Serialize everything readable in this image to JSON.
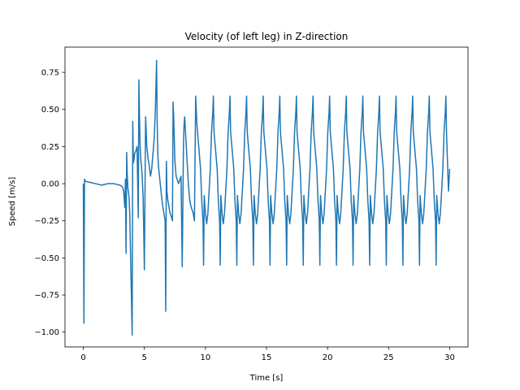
{
  "chart_data": {
    "type": "line",
    "title": "Velocity (of left leg) in Z-direction",
    "xlabel": "Time [s]",
    "ylabel": "Speed [m/s]",
    "xlim": [
      -1.5,
      31.5
    ],
    "ylim": [
      -1.1,
      0.92
    ],
    "xticks": [
      0,
      5,
      10,
      15,
      20,
      25,
      30
    ],
    "xtick_labels": [
      "0",
      "5",
      "10",
      "15",
      "20",
      "25",
      "30"
    ],
    "yticks": [
      0.75,
      0.5,
      0.25,
      0.0,
      -0.25,
      -0.5,
      -0.75,
      -1.0
    ],
    "ytick_labels": [
      "0.75",
      "0.50",
      "0.25",
      "0.00",
      "−0.25",
      "−0.50",
      "−0.75",
      "−1.00"
    ],
    "grid": false,
    "series": [
      {
        "color": "#1f77b4",
        "transient": {
          "x": [
            0.0,
            0.05,
            0.1,
            0.15,
            0.2,
            0.5,
            1.0,
            1.5,
            2.0,
            2.5,
            3.0,
            3.2,
            3.3,
            3.4,
            3.45,
            3.5,
            3.55,
            3.6,
            3.65,
            3.7,
            3.75,
            3.8,
            3.9,
            4.0,
            4.05,
            4.1,
            4.15,
            4.2,
            4.3,
            4.4,
            4.5,
            4.55,
            4.6,
            4.65,
            4.7,
            4.8,
            4.9,
            5.0,
            5.1,
            5.2,
            5.3,
            5.4,
            5.5,
            5.6,
            5.7,
            5.8,
            5.9,
            6.0,
            6.05,
            6.1,
            6.15,
            6.2,
            6.3,
            6.4,
            6.5,
            6.6,
            6.7,
            6.75,
            6.8,
            6.85,
            6.9,
            7.0,
            7.1,
            7.2,
            7.3,
            7.35,
            7.4,
            7.45,
            7.5,
            7.6,
            7.8,
            8.0,
            8.1,
            8.2,
            8.25,
            8.3,
            8.4,
            8.5,
            8.6,
            8.7,
            8.8,
            9.0,
            9.1,
            9.2,
            9.3,
            9.4,
            9.5
          ],
          "y": [
            0.0,
            -0.94,
            0.03,
            0.02,
            0.015,
            0.01,
            0.0,
            -0.01,
            0.0,
            0.0,
            -0.01,
            -0.02,
            -0.05,
            -0.16,
            0.03,
            -0.47,
            0.21,
            0.05,
            -0.03,
            -0.06,
            -0.1,
            -0.2,
            -0.6,
            -1.02,
            0.42,
            0.14,
            0.16,
            0.2,
            0.22,
            0.25,
            -0.23,
            0.7,
            0.45,
            0.25,
            0.17,
            0.08,
            -0.1,
            -0.58,
            0.45,
            0.25,
            0.17,
            0.12,
            0.05,
            0.1,
            0.2,
            0.3,
            0.5,
            0.83,
            0.4,
            0.2,
            0.12,
            0.08,
            0.0,
            -0.08,
            -0.15,
            -0.2,
            -0.25,
            -0.86,
            0.15,
            -0.05,
            -0.1,
            -0.15,
            -0.2,
            -0.22,
            -0.25,
            0.55,
            0.45,
            0.3,
            0.15,
            0.05,
            0.0,
            0.05,
            -0.56,
            0.25,
            0.4,
            0.45,
            0.3,
            0.15,
            0.0,
            -0.1,
            -0.15,
            -0.2,
            -0.25,
            0.59,
            0.4,
            0.3,
            0.2
          ]
        },
        "cycle": {
          "x_offsets": [
            0.0,
            0.1,
            0.2,
            0.3,
            0.35,
            0.4,
            0.5,
            0.6,
            0.7,
            0.8,
            0.9,
            1.0,
            1.1,
            1.15,
            1.2
          ],
          "y_values": [
            0.2,
            0.1,
            -0.12,
            -0.25,
            -0.55,
            -0.08,
            -0.2,
            -0.27,
            -0.2,
            -0.05,
            0.1,
            0.35,
            0.48,
            0.59,
            0.35
          ],
          "start_x": 9.5,
          "period": 1.36,
          "count": 15
        },
        "tail": {
          "x": [
            29.9,
            30.0
          ],
          "y": [
            -0.05,
            0.1
          ]
        }
      }
    ]
  }
}
